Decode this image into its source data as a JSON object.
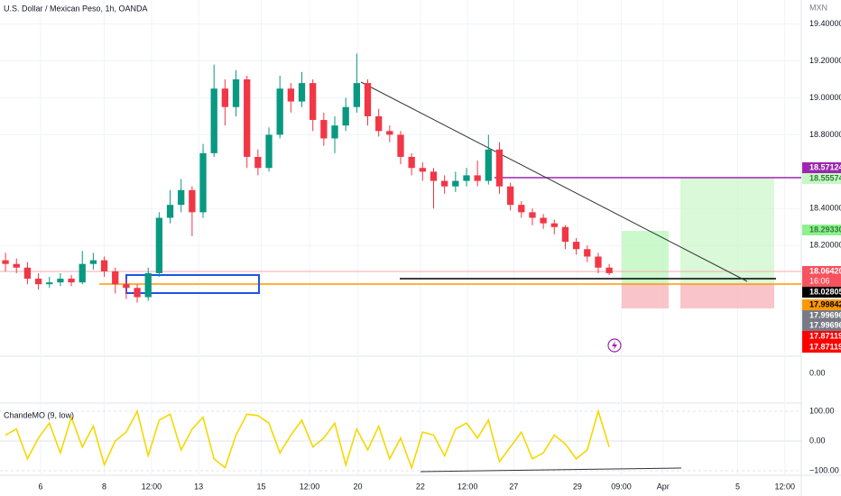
{
  "chart_data": {
    "type": "candlestick",
    "title": "U.S. Dollar / Mexican Peso, 1h, OANDA",
    "currency": "MXN",
    "up_color": "#089981",
    "down_color": "#f23645",
    "open": [
      18.12,
      18.1,
      18.08,
      18.02,
      17.99,
      18.0,
      18.02,
      18.0,
      18.1,
      18.12,
      18.06,
      17.99,
      17.97,
      17.92,
      18.05,
      18.35,
      18.42,
      18.5,
      18.38,
      18.7,
      19.05,
      18.95,
      19.1,
      18.68,
      18.62,
      18.8,
      19.05,
      18.98,
      19.08,
      18.88,
      18.78,
      18.85,
      18.95,
      19.08,
      18.9,
      18.82,
      18.8,
      18.68,
      18.62,
      18.6,
      18.55,
      18.52,
      18.55,
      18.58,
      18.55,
      18.72,
      18.52,
      18.42,
      18.38,
      18.35,
      18.32,
      18.3,
      18.22,
      18.18,
      18.14,
      18.08
    ],
    "high": [
      18.16,
      18.13,
      18.11,
      18.05,
      18.03,
      18.05,
      18.04,
      18.17,
      18.16,
      18.14,
      18.08,
      18.02,
      17.99,
      18.08,
      18.38,
      18.5,
      18.56,
      18.52,
      18.75,
      19.18,
      19.1,
      19.15,
      19.12,
      18.72,
      18.84,
      19.12,
      19.08,
      19.14,
      19.1,
      18.92,
      18.9,
      19.0,
      19.24,
      19.1,
      18.94,
      18.85,
      18.82,
      18.7,
      18.65,
      18.62,
      18.58,
      18.6,
      18.62,
      18.66,
      18.8,
      18.76,
      18.54,
      18.44,
      18.4,
      18.37,
      18.34,
      18.31,
      18.24,
      18.2,
      18.16,
      18.1
    ],
    "low": [
      18.06,
      18.05,
      17.99,
      17.96,
      17.97,
      17.98,
      17.98,
      17.99,
      18.07,
      18.03,
      17.94,
      17.91,
      17.89,
      17.9,
      18.03,
      18.32,
      18.38,
      18.25,
      18.35,
      18.68,
      18.85,
      18.9,
      18.62,
      18.58,
      18.6,
      18.78,
      18.92,
      18.95,
      18.82,
      18.74,
      18.7,
      18.82,
      18.92,
      18.85,
      18.79,
      18.76,
      18.64,
      18.58,
      18.55,
      18.4,
      18.48,
      18.49,
      18.52,
      18.52,
      18.53,
      18.48,
      18.39,
      18.35,
      18.31,
      18.29,
      18.26,
      18.18,
      18.15,
      18.11,
      18.05,
      18.04
    ],
    "close": [
      18.1,
      18.08,
      18.02,
      17.99,
      18.0,
      18.02,
      18.0,
      18.1,
      18.12,
      18.06,
      17.99,
      17.97,
      17.92,
      18.05,
      18.35,
      18.42,
      18.5,
      18.38,
      18.7,
      19.05,
      18.95,
      19.1,
      18.68,
      18.62,
      18.8,
      19.05,
      18.98,
      19.08,
      18.88,
      18.78,
      18.85,
      18.95,
      19.08,
      18.9,
      18.82,
      18.8,
      18.68,
      18.62,
      18.6,
      18.55,
      18.52,
      18.55,
      18.58,
      18.55,
      18.72,
      18.52,
      18.42,
      18.38,
      18.35,
      18.32,
      18.3,
      18.22,
      18.18,
      18.14,
      18.08,
      18.05
    ],
    "xlim": [
      0,
      73
    ],
    "xticks": [
      {
        "value": 3.7,
        "label": "6"
      },
      {
        "value": 9.5,
        "label": "8"
      },
      {
        "value": 13.8,
        "label": "12:00"
      },
      {
        "value": 18.1,
        "label": "13"
      },
      {
        "value": 23.8,
        "label": "15"
      },
      {
        "value": 28.2,
        "label": "12:00"
      },
      {
        "value": 32.6,
        "label": "20"
      },
      {
        "value": 38.3,
        "label": "22"
      },
      {
        "value": 42.6,
        "label": "12:00"
      },
      {
        "value": 46.8,
        "label": "27"
      },
      {
        "value": 52.6,
        "label": "29"
      },
      {
        "value": 56.6,
        "label": "09:00"
      },
      {
        "value": 60.4,
        "label": "Apr"
      },
      {
        "value": 67.2,
        "label": "5"
      },
      {
        "value": 71.5,
        "label": "12:00"
      }
    ],
    "ylim": [
      17.6,
      19.53
    ],
    "yticks": [
      {
        "value": 19.4,
        "label": "19.40000"
      },
      {
        "value": 19.2,
        "label": "19.20000"
      },
      {
        "value": 19.0,
        "label": "19.00000"
      },
      {
        "value": 18.8,
        "label": "18.80000"
      },
      {
        "value": 18.4,
        "label": "18.40000"
      },
      {
        "value": 18.2,
        "label": "18.20000"
      }
    ],
    "time_label": "16:06",
    "price_labels": [
      {
        "label": "18.57124",
        "color": "#9c27b0",
        "text_color": "#ffffff"
      },
      {
        "label": "18.55574",
        "color": "#c8f7c8",
        "text_color": "#2e7d32"
      },
      {
        "label": "18.29330",
        "color": "#8ff08f",
        "text_color": "#2e7d32"
      },
      {
        "label": "18.06420",
        "color": "#f7525f",
        "text_color": "#ffffff"
      },
      {
        "label": "18.02805",
        "color": "#000000",
        "text_color": "#ffffff"
      },
      {
        "label": "17.99842",
        "color": "#ff9800",
        "text_color": "#000000"
      },
      {
        "label": "17.99696",
        "color": "#787b86",
        "text_color": "#ffffff"
      },
      {
        "label": "17.99696",
        "color": "#787b86",
        "text_color": "#ffffff"
      },
      {
        "label": "17.87119",
        "color": "#ff0000",
        "text_color": "#ffffff"
      },
      {
        "label": "17.87119",
        "color": "#ff0000",
        "text_color": "#ffffff"
      }
    ],
    "middle_pane": {
      "yticks": [
        {
          "value": 0,
          "label": "0.00"
        }
      ]
    },
    "indicator": {
      "name": "ChandeMO (9, low)",
      "color": "#f5d800",
      "values": [
        20,
        40,
        -60,
        10,
        60,
        -40,
        80,
        -20,
        50,
        -80,
        0,
        30,
        100,
        -50,
        70,
        90,
        -30,
        40,
        80,
        -60,
        -90,
        20,
        90,
        85,
        60,
        -40,
        20,
        70,
        -20,
        10,
        60,
        -80,
        40,
        -30,
        50,
        -60,
        10,
        -90,
        30,
        20,
        -50,
        40,
        60,
        10,
        70,
        -70,
        -20,
        30,
        -60,
        -40,
        20,
        -10,
        -60,
        -30,
        100,
        -20
      ],
      "ylim": [
        -100,
        100
      ],
      "yticks": [
        {
          "value": 100,
          "label": "100.00"
        },
        {
          "value": 0,
          "label": "0.00"
        },
        {
          "value": -100,
          "label": "−100.00"
        }
      ]
    }
  }
}
